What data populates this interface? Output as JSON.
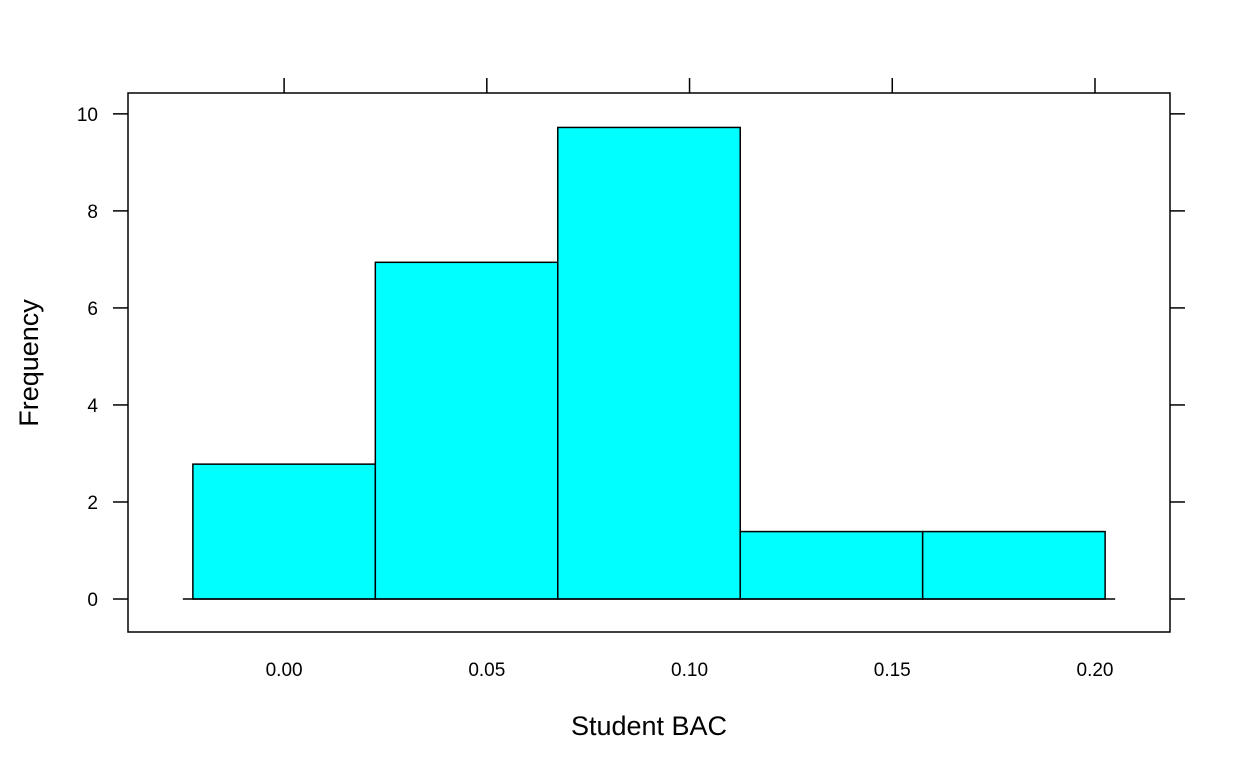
{
  "chart_data": {
    "type": "bar",
    "style": "histogram",
    "title": "",
    "xlabel": "Student BAC",
    "ylabel": "Frequency",
    "bins": [
      {
        "start": -0.0225,
        "end": 0.0225,
        "value": 2.78
      },
      {
        "start": 0.0225,
        "end": 0.0675,
        "value": 6.94
      },
      {
        "start": 0.0675,
        "end": 0.1125,
        "value": 9.72
      },
      {
        "start": 0.1125,
        "end": 0.1575,
        "value": 1.39
      },
      {
        "start": 0.1575,
        "end": 0.2025,
        "value": 1.39
      }
    ],
    "xticks": [
      "0.00",
      "0.05",
      "0.10",
      "0.15",
      "0.20"
    ],
    "yticks": [
      "0",
      "2",
      "4",
      "6",
      "8",
      "10"
    ],
    "xlim": [
      -0.0385,
      0.2185
    ],
    "ylim": [
      -0.68,
      10.43
    ],
    "grid": false,
    "bar_fill": "#00ffff",
    "bar_stroke": "#000000"
  }
}
